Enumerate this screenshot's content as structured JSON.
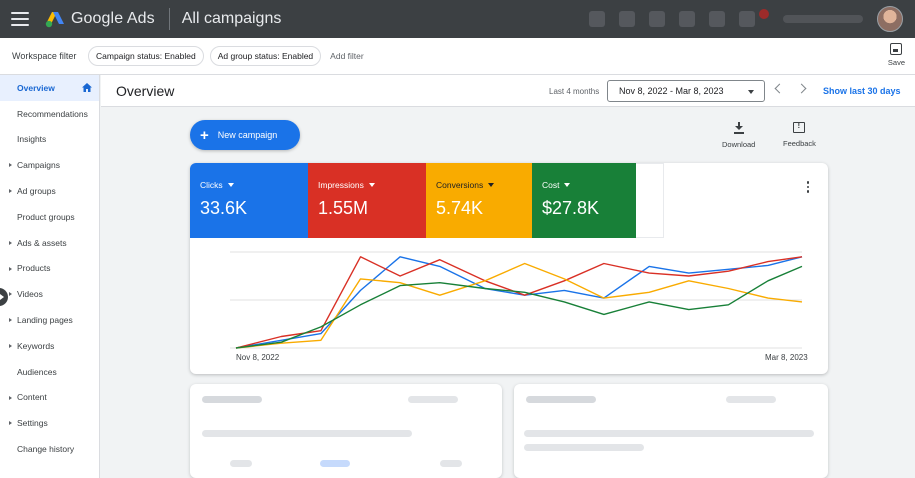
{
  "topbar": {
    "app_name": "Google Ads",
    "title": "All campaigns",
    "icons": [
      "search-icon",
      "reports-icon",
      "tools-icon",
      "refresh-icon",
      "help-icon",
      "notifications-icon"
    ]
  },
  "filterbar": {
    "workspace_label": "Workspace filter",
    "chips": [
      "Campaign status: Enabled",
      "Ad group status: Enabled"
    ],
    "add_filter": "Add filter",
    "save_label": "Save"
  },
  "sidebar": {
    "items": [
      {
        "label": "Overview",
        "active": true,
        "arrow": false
      },
      {
        "label": "Recommendations",
        "active": false,
        "arrow": false
      },
      {
        "label": "Insights",
        "active": false,
        "arrow": false
      },
      {
        "label": "Campaigns",
        "active": false,
        "arrow": true
      },
      {
        "label": "Ad groups",
        "active": false,
        "arrow": true
      },
      {
        "label": "Product groups",
        "active": false,
        "arrow": false
      },
      {
        "label": "Ads & assets",
        "active": false,
        "arrow": true
      },
      {
        "label": "Products",
        "active": false,
        "arrow": true
      },
      {
        "label": "Videos",
        "active": false,
        "arrow": true
      },
      {
        "label": "Landing pages",
        "active": false,
        "arrow": true
      },
      {
        "label": "Keywords",
        "active": false,
        "arrow": true
      },
      {
        "label": "Audiences",
        "active": false,
        "arrow": false
      },
      {
        "label": "Content",
        "active": false,
        "arrow": true
      },
      {
        "label": "Settings",
        "active": false,
        "arrow": true
      },
      {
        "label": "Change history",
        "active": false,
        "arrow": false
      }
    ]
  },
  "header": {
    "title": "Overview",
    "range_label": "Last 4 months",
    "date_range": "Nov 8, 2022 - Mar 8, 2023",
    "show_last": "Show last 30 days"
  },
  "actions": {
    "new_campaign": "New campaign",
    "download": "Download",
    "feedback": "Feedback"
  },
  "metrics": [
    {
      "label": "Clicks",
      "value": "33.6K",
      "color": "#1a73e8"
    },
    {
      "label": "Impressions",
      "value": "1.55M",
      "color": "#d93025"
    },
    {
      "label": "Conversions",
      "value": "5.74K",
      "color": "#f9ab00"
    },
    {
      "label": "Cost",
      "value": "$27.8K",
      "color": "#188038"
    }
  ],
  "chart_data": {
    "type": "line",
    "x_start_label": "Nov 8, 2022",
    "x_end_label": "Mar 8, 2023",
    "x": [
      0,
      0.08,
      0.15,
      0.22,
      0.29,
      0.36,
      0.44,
      0.51,
      0.58,
      0.65,
      0.73,
      0.8,
      0.87,
      0.94,
      1
    ],
    "ylim": [
      0,
      100
    ],
    "grid": true,
    "series": [
      {
        "color": "#1a73e8",
        "values": [
          0,
          8,
          15,
          60,
          95,
          85,
          62,
          55,
          60,
          52,
          85,
          78,
          82,
          86,
          95
        ]
      },
      {
        "color": "#d93025",
        "values": [
          0,
          12,
          18,
          95,
          75,
          92,
          70,
          55,
          70,
          88,
          78,
          75,
          80,
          90,
          95
        ]
      },
      {
        "color": "#f9ab00",
        "values": [
          0,
          5,
          8,
          72,
          68,
          55,
          70,
          88,
          72,
          52,
          58,
          70,
          62,
          52,
          48
        ]
      },
      {
        "color": "#188038",
        "values": [
          0,
          6,
          22,
          45,
          65,
          68,
          62,
          58,
          48,
          35,
          48,
          40,
          45,
          70,
          85
        ]
      }
    ]
  }
}
